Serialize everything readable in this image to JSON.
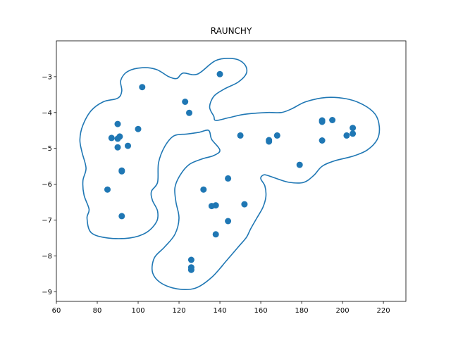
{
  "chart_data": {
    "type": "scatter",
    "title": "RAUNCHY",
    "xlabel": "",
    "ylabel": "",
    "xlim": [
      60,
      231
    ],
    "ylim": [
      -9.27,
      -2.0
    ],
    "xticks": [
      60,
      80,
      100,
      120,
      140,
      160,
      180,
      200,
      220
    ],
    "yticks": [
      -9,
      -8,
      -7,
      -6,
      -5,
      -4,
      -3
    ],
    "grid": false,
    "color": "#1f77b4",
    "points": [
      {
        "x": 102,
        "y": -3.29
      },
      {
        "x": 140,
        "y": -2.93
      },
      {
        "x": 123,
        "y": -3.7
      },
      {
        "x": 125,
        "y": -4.01
      },
      {
        "x": 90,
        "y": -4.32
      },
      {
        "x": 100,
        "y": -4.46
      },
      {
        "x": 87,
        "y": -4.71
      },
      {
        "x": 90,
        "y": -4.73
      },
      {
        "x": 91,
        "y": -4.67
      },
      {
        "x": 90,
        "y": -4.97
      },
      {
        "x": 95,
        "y": -4.93
      },
      {
        "x": 92,
        "y": -5.62
      },
      {
        "x": 92,
        "y": -5.64
      },
      {
        "x": 85,
        "y": -6.15
      },
      {
        "x": 92,
        "y": -6.89
      },
      {
        "x": 150,
        "y": -4.64
      },
      {
        "x": 164,
        "y": -4.77
      },
      {
        "x": 164,
        "y": -4.81
      },
      {
        "x": 168,
        "y": -4.64
      },
      {
        "x": 179,
        "y": -5.46
      },
      {
        "x": 190,
        "y": -4.22
      },
      {
        "x": 190,
        "y": -4.26
      },
      {
        "x": 195,
        "y": -4.21
      },
      {
        "x": 190,
        "y": -4.78
      },
      {
        "x": 202,
        "y": -4.64
      },
      {
        "x": 205,
        "y": -4.59
      },
      {
        "x": 205,
        "y": -4.43
      },
      {
        "x": 144,
        "y": -5.84
      },
      {
        "x": 132,
        "y": -6.15
      },
      {
        "x": 136,
        "y": -6.61
      },
      {
        "x": 138,
        "y": -6.59
      },
      {
        "x": 152,
        "y": -6.56
      },
      {
        "x": 144,
        "y": -7.03
      },
      {
        "x": 138,
        "y": -7.4
      },
      {
        "x": 126,
        "y": -8.11
      },
      {
        "x": 126,
        "y": -8.32
      },
      {
        "x": 126,
        "y": -8.39
      }
    ],
    "contour": [
      [
        129,
        -2.93
      ],
      [
        138,
        -2.55
      ],
      [
        147,
        -2.5
      ],
      [
        152,
        -2.65
      ],
      [
        153,
        -2.9
      ],
      [
        149,
        -3.15
      ],
      [
        142,
        -3.35
      ],
      [
        137,
        -3.55
      ],
      [
        135,
        -3.85
      ],
      [
        137,
        -4.1
      ],
      [
        138,
        -4.22
      ],
      [
        144,
        -4.15
      ],
      [
        152,
        -4.05
      ],
      [
        163,
        -4.0
      ],
      [
        170,
        -4.0
      ],
      [
        175,
        -3.9
      ],
      [
        182,
        -3.7
      ],
      [
        192,
        -3.58
      ],
      [
        202,
        -3.62
      ],
      [
        210,
        -3.78
      ],
      [
        216,
        -4.05
      ],
      [
        218,
        -4.4
      ],
      [
        217,
        -4.75
      ],
      [
        212,
        -5.05
      ],
      [
        205,
        -5.22
      ],
      [
        196,
        -5.35
      ],
      [
        190,
        -5.5
      ],
      [
        186,
        -5.75
      ],
      [
        181,
        -5.95
      ],
      [
        174,
        -5.95
      ],
      [
        168,
        -5.85
      ],
      [
        163,
        -5.75
      ],
      [
        161,
        -5.75
      ],
      [
        160,
        -5.85
      ],
      [
        162,
        -6.05
      ],
      [
        162.5,
        -6.35
      ],
      [
        161,
        -6.65
      ],
      [
        158,
        -6.95
      ],
      [
        155,
        -7.25
      ],
      [
        153,
        -7.48
      ],
      [
        149,
        -7.75
      ],
      [
        143,
        -8.15
      ],
      [
        136,
        -8.6
      ],
      [
        128,
        -8.9
      ],
      [
        119,
        -8.92
      ],
      [
        111,
        -8.75
      ],
      [
        107,
        -8.45
      ],
      [
        108,
        -8.05
      ],
      [
        113,
        -7.75
      ],
      [
        118,
        -7.4
      ],
      [
        120,
        -6.95
      ],
      [
        118.5,
        -6.5
      ],
      [
        118,
        -6.1
      ],
      [
        120.5,
        -5.75
      ],
      [
        125,
        -5.45
      ],
      [
        131,
        -5.3
      ],
      [
        137,
        -5.2
      ],
      [
        140,
        -5.05
      ],
      [
        136,
        -4.75
      ],
      [
        134.5,
        -4.5
      ],
      [
        130,
        -4.55
      ],
      [
        124,
        -4.6
      ],
      [
        117.5,
        -4.65
      ],
      [
        113,
        -4.95
      ],
      [
        110,
        -5.4
      ],
      [
        109.5,
        -5.95
      ],
      [
        106.5,
        -6.2
      ],
      [
        107,
        -6.45
      ],
      [
        109.5,
        -6.75
      ],
      [
        109,
        -7.05
      ],
      [
        104,
        -7.35
      ],
      [
        96,
        -7.5
      ],
      [
        85,
        -7.5
      ],
      [
        77,
        -7.35
      ],
      [
        75,
        -6.95
      ],
      [
        76,
        -6.7
      ],
      [
        73.5,
        -6.3
      ],
      [
        73,
        -5.9
      ],
      [
        74.5,
        -5.55
      ],
      [
        72.5,
        -5.1
      ],
      [
        71.5,
        -4.75
      ],
      [
        73,
        -4.35
      ],
      [
        77,
        -3.95
      ],
      [
        83,
        -3.7
      ],
      [
        90,
        -3.6
      ],
      [
        92,
        -3.4
      ],
      [
        91.5,
        -3.1
      ],
      [
        95,
        -2.85
      ],
      [
        102,
        -2.75
      ],
      [
        109,
        -2.8
      ],
      [
        115,
        -3.0
      ],
      [
        119,
        -3.05
      ],
      [
        122,
        -2.9
      ]
    ]
  }
}
